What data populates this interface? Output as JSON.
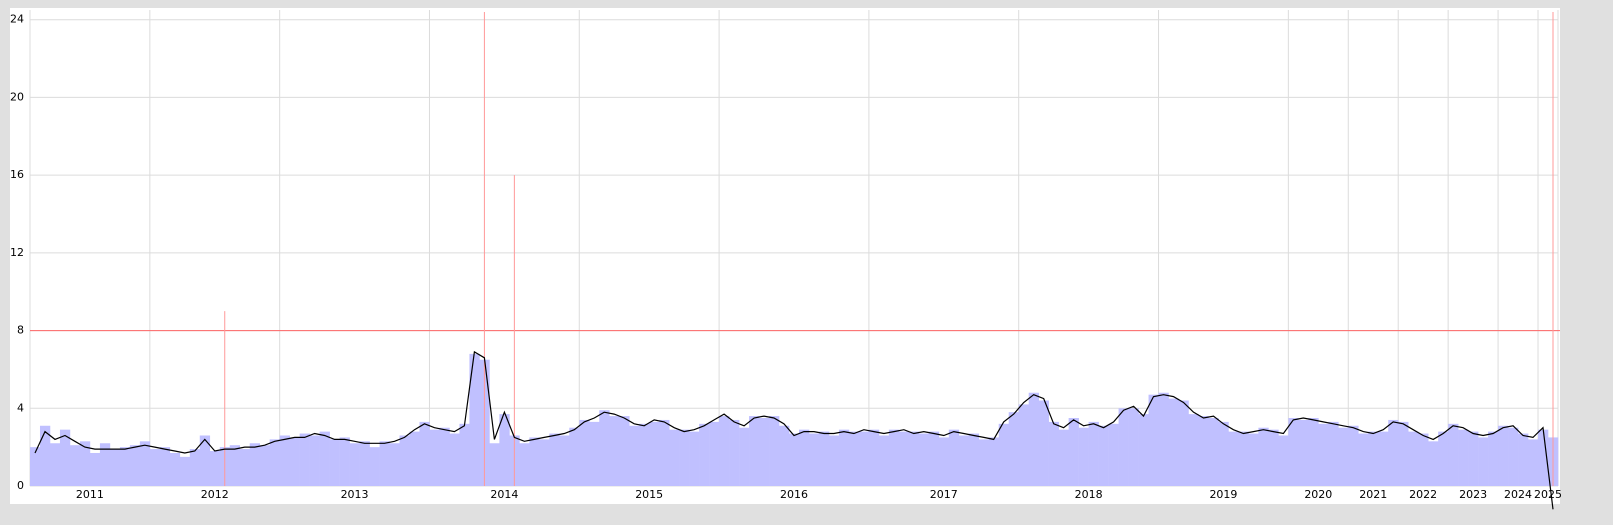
{
  "chart_data": {
    "type": "bar-line",
    "categories": [
      "2011",
      null,
      null,
      null,
      null,
      null,
      null,
      null,
      null,
      null,
      null,
      null,
      "2012",
      null,
      null,
      null,
      null,
      null,
      null,
      null,
      null,
      null,
      null,
      null,
      null,
      "2013",
      null,
      null,
      null,
      null,
      null,
      null,
      null,
      null,
      null,
      null,
      null,
      null,
      null,
      null,
      "2014",
      null,
      null,
      null,
      null,
      null,
      null,
      null,
      null,
      null,
      null,
      null,
      null,
      null,
      null,
      "2015",
      null,
      null,
      null,
      null,
      null,
      null,
      null,
      null,
      null,
      null,
      null,
      null,
      null,
      "2016",
      null,
      null,
      null,
      null,
      null,
      null,
      null,
      null,
      null,
      null,
      null,
      null,
      null,
      null,
      "2017",
      null,
      null,
      null,
      null,
      null,
      null,
      null,
      null,
      null,
      null,
      null,
      null,
      null,
      null,
      "2018",
      null,
      null,
      null,
      null,
      null,
      null,
      null,
      null,
      null,
      null,
      null,
      null,
      null,
      "2019",
      null,
      null,
      null,
      null,
      null,
      null,
      null,
      null,
      null,
      null,
      null,
      null,
      "2020",
      null,
      null,
      null,
      null,
      null,
      "2021",
      null,
      null,
      null,
      null,
      "2022",
      null,
      null,
      null,
      null,
      "2023",
      null,
      null,
      null,
      null,
      "2024",
      null,
      null,
      null,
      "2025",
      null
    ],
    "series": [
      {
        "kind": "bar",
        "color": "#c0c0ff",
        "values": [
          2.0,
          3.1,
          2.2,
          2.9,
          2.1,
          2.3,
          1.7,
          2.2,
          1.9,
          2.0,
          2.1,
          2.3,
          1.9,
          2.0,
          1.7,
          1.5,
          1.9,
          2.6,
          1.8,
          2.0,
          2.1,
          1.9,
          2.2,
          2.1,
          2.4,
          2.6,
          2.5,
          2.7,
          2.6,
          2.8,
          2.4,
          2.5,
          2.2,
          2.3,
          2.0,
          2.3,
          2.2,
          2.6,
          2.8,
          3.3,
          2.9,
          3.0,
          2.7,
          3.2,
          6.8,
          6.5,
          2.2,
          3.7,
          2.6,
          2.2,
          2.5,
          2.4,
          2.7,
          2.6,
          3.0,
          3.4,
          3.3,
          3.9,
          3.6,
          3.6,
          3.1,
          3.2,
          3.3,
          3.4,
          2.9,
          2.9,
          2.8,
          3.2,
          3.3,
          3.6,
          3.4,
          3.0,
          3.6,
          3.5,
          3.6,
          3.1,
          2.7,
          2.9,
          2.7,
          2.8,
          2.6,
          2.9,
          2.8,
          2.8,
          2.9,
          2.6,
          2.9,
          2.8,
          2.8,
          2.7,
          2.8,
          2.5,
          2.9,
          2.6,
          2.7,
          2.4,
          2.5,
          3.2,
          3.8,
          4.2,
          4.8,
          4.4,
          3.3,
          2.9,
          3.5,
          3.0,
          3.3,
          3.1,
          3.2,
          4.0,
          4.0,
          3.7,
          4.7,
          4.8,
          4.5,
          4.4,
          3.7,
          3.6,
          3.5,
          3.3,
          2.8,
          2.8,
          2.7,
          3.0,
          2.9,
          2.6,
          3.5,
          3.4,
          3.5,
          3.2,
          3.3,
          3.0,
          3.1,
          2.7,
          2.8,
          2.8,
          3.4,
          3.3,
          2.8,
          2.7,
          2.3,
          2.8,
          3.2,
          2.9,
          2.8,
          2.5,
          2.8,
          3.1,
          3.0,
          2.7,
          2.4,
          2.9,
          2.5
        ]
      },
      {
        "kind": "line",
        "color": "#000000",
        "values": [
          1.7,
          2.8,
          2.4,
          2.6,
          2.3,
          2.0,
          1.9,
          1.9,
          1.9,
          1.9,
          2.0,
          2.1,
          2.0,
          1.9,
          1.8,
          1.7,
          1.8,
          2.4,
          1.8,
          1.9,
          1.9,
          2.0,
          2.0,
          2.1,
          2.3,
          2.4,
          2.5,
          2.5,
          2.7,
          2.6,
          2.4,
          2.4,
          2.3,
          2.2,
          2.2,
          2.2,
          2.3,
          2.5,
          2.9,
          3.2,
          3.0,
          2.9,
          2.8,
          3.1,
          6.9,
          6.6,
          2.4,
          3.8,
          2.5,
          2.3,
          2.4,
          2.5,
          2.6,
          2.7,
          2.9,
          3.3,
          3.5,
          3.8,
          3.7,
          3.5,
          3.2,
          3.1,
          3.4,
          3.3,
          3.0,
          2.8,
          2.9,
          3.1,
          3.4,
          3.7,
          3.3,
          3.1,
          3.5,
          3.6,
          3.5,
          3.2,
          2.6,
          2.8,
          2.8,
          2.7,
          2.7,
          2.8,
          2.7,
          2.9,
          2.8,
          2.7,
          2.8,
          2.9,
          2.7,
          2.8,
          2.7,
          2.6,
          2.8,
          2.7,
          2.6,
          2.5,
          2.4,
          3.3,
          3.7,
          4.3,
          4.7,
          4.5,
          3.2,
          3.0,
          3.4,
          3.1,
          3.2,
          3.0,
          3.3,
          3.9,
          4.1,
          3.6,
          4.6,
          4.7,
          4.6,
          4.3,
          3.8,
          3.5,
          3.6,
          3.2,
          2.9,
          2.7,
          2.8,
          2.9,
          2.8,
          2.7,
          3.4,
          3.5,
          3.4,
          3.3,
          3.2,
          3.1,
          3.0,
          2.8,
          2.7,
          2.9,
          3.3,
          3.2,
          2.9,
          2.6,
          2.4,
          2.7,
          3.1,
          3.0,
          2.7,
          2.6,
          2.7,
          3.0,
          3.1,
          2.6,
          2.5,
          3.0,
          -1.2
        ]
      }
    ],
    "events": {
      "color": "#ff9999",
      "x": [
        19,
        45,
        48,
        152
      ],
      "values": [
        9,
        24.4,
        16,
        24.4
      ]
    },
    "threshold": {
      "value": 8,
      "color": "#ff6666"
    },
    "ylim": [
      0,
      24.5
    ],
    "yticks": [
      0,
      4,
      8,
      12,
      16,
      20,
      24
    ],
    "grid": true
  }
}
